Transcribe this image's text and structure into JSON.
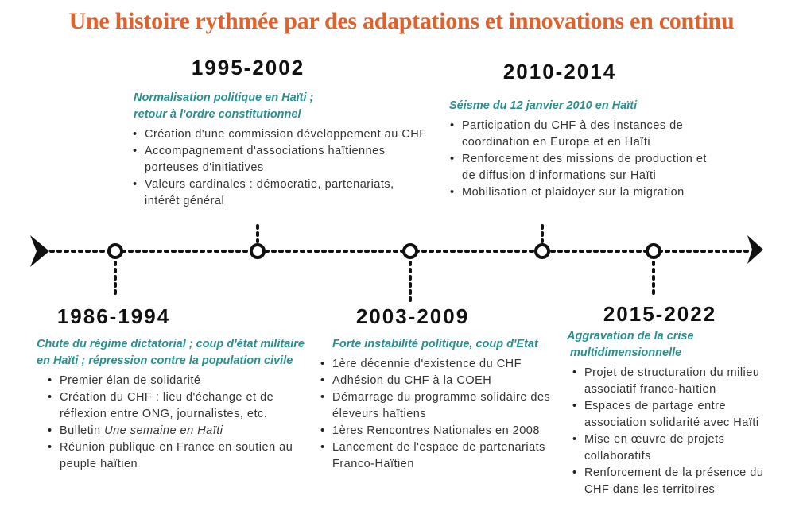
{
  "title": "Une histoire rythmée par des adaptations et innovations en continu",
  "periods": [
    {
      "years": "1995-2002",
      "subtitle_lines": [
        "Normalisation politique en Haïti ;",
        "retour à l'ordre constitutionnel"
      ],
      "items": [
        "Création d'une commission développement au CHF",
        "Accompagnement d'associations haïtiennes porteuses d'initiatives",
        "Valeurs cardinales : démocratie, partenariats, intérêt général"
      ]
    },
    {
      "years": "2010-2014",
      "subtitle_lines": [
        "Séisme du 12 janvier 2010 en Haïti"
      ],
      "items": [
        "Participation du CHF à des instances de coordination en Europe et en Haïti",
        "Renforcement des missions de production et de diffusion d'informations sur Haïti",
        "Mobilisation et plaidoyer sur la migration"
      ]
    },
    {
      "years": "1986-1994",
      "subtitle_lines": [
        "Chute du régime dictatorial ; coup d'état militaire",
        "en Haïti ; répression contre la population civile"
      ],
      "items": [
        "Premier élan de solidarité",
        "Création du CHF : lieu d'échange et de réflexion entre ONG, journalistes, etc.",
        {
          "prefix": "Bulletin",
          "title": "Une semaine en Haïti"
        },
        "Réunion publique en France en soutien au peuple haïtien"
      ]
    },
    {
      "years": "2003-2009",
      "subtitle_lines": [
        "Forte instabilité politique, coup d'Etat"
      ],
      "items": [
        "1ère décennie d'existence du CHF",
        "Adhésion du CHF à la COEH",
        "Démarrage du programme solidaire des éleveurs haïtiens",
        "1ères Rencontres Nationales en 2008",
        "Lancement de l'espace de partenariats Franco-Haïtien"
      ]
    },
    {
      "years": "2015-2022",
      "subtitle_lines": [
        "Aggravation de la crise",
        "multidimensionnelle"
      ],
      "items": [
        "Projet de structuration du milieu associatif franco-haïtien",
        "Espaces de partage entre association solidarité avec Haïti",
        "Mise en œuvre de projets collaboratifs",
        "Renforcement de la présence du CHF dans les territoires"
      ]
    }
  ]
}
